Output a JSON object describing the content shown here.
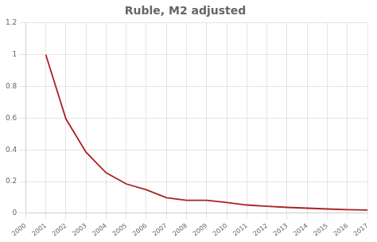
{
  "chart_data": {
    "type": "line",
    "title": "Ruble, M2 adjusted",
    "x": [
      2001,
      2002,
      2003,
      2004,
      2005,
      2006,
      2007,
      2008,
      2009,
      2010,
      2011,
      2012,
      2013,
      2014,
      2015,
      2016,
      2017
    ],
    "values": [
      1.0,
      0.595,
      0.385,
      0.255,
      0.185,
      0.148,
      0.098,
      0.082,
      0.082,
      0.068,
      0.052,
      0.044,
      0.037,
      0.032,
      0.027,
      0.023,
      0.02
    ],
    "color": "#aa2222",
    "xlim": [
      2000,
      2017
    ],
    "xticks": [
      2000,
      2001,
      2002,
      2003,
      2004,
      2005,
      2006,
      2007,
      2008,
      2009,
      2010,
      2011,
      2012,
      2013,
      2014,
      2015,
      2016,
      2017
    ],
    "ylim": [
      0,
      1.2
    ],
    "yticks": [
      0,
      0.2,
      0.4,
      0.6,
      0.8,
      1,
      1.2
    ],
    "grid": true
  }
}
